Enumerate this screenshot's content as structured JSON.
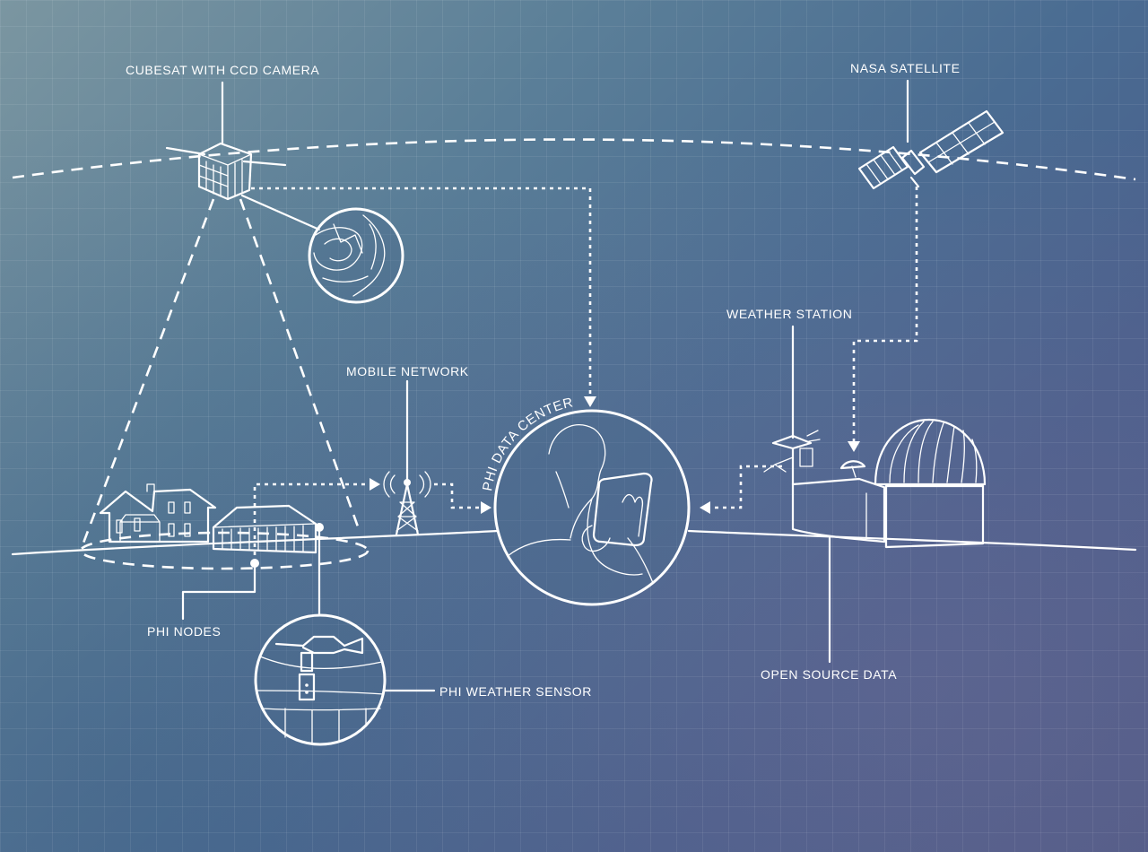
{
  "labels": {
    "cubesat": "CUBESAT WITH CCD CAMERA",
    "nasa_satellite": "NASA SATELLITE",
    "weather_station": "WEATHER STATION",
    "mobile_network": "MOBILE NETWORK",
    "phi_data_center": "PHI DATA CENTER",
    "phi_nodes": "PHI NODES",
    "phi_weather_sensor": "PHI WEATHER SENSOR",
    "open_source_data": "OPEN SOURCE DATA"
  },
  "colors": {
    "line": "#ffffff",
    "background_start": "#7b96a1",
    "background_end": "#4e5a86"
  }
}
